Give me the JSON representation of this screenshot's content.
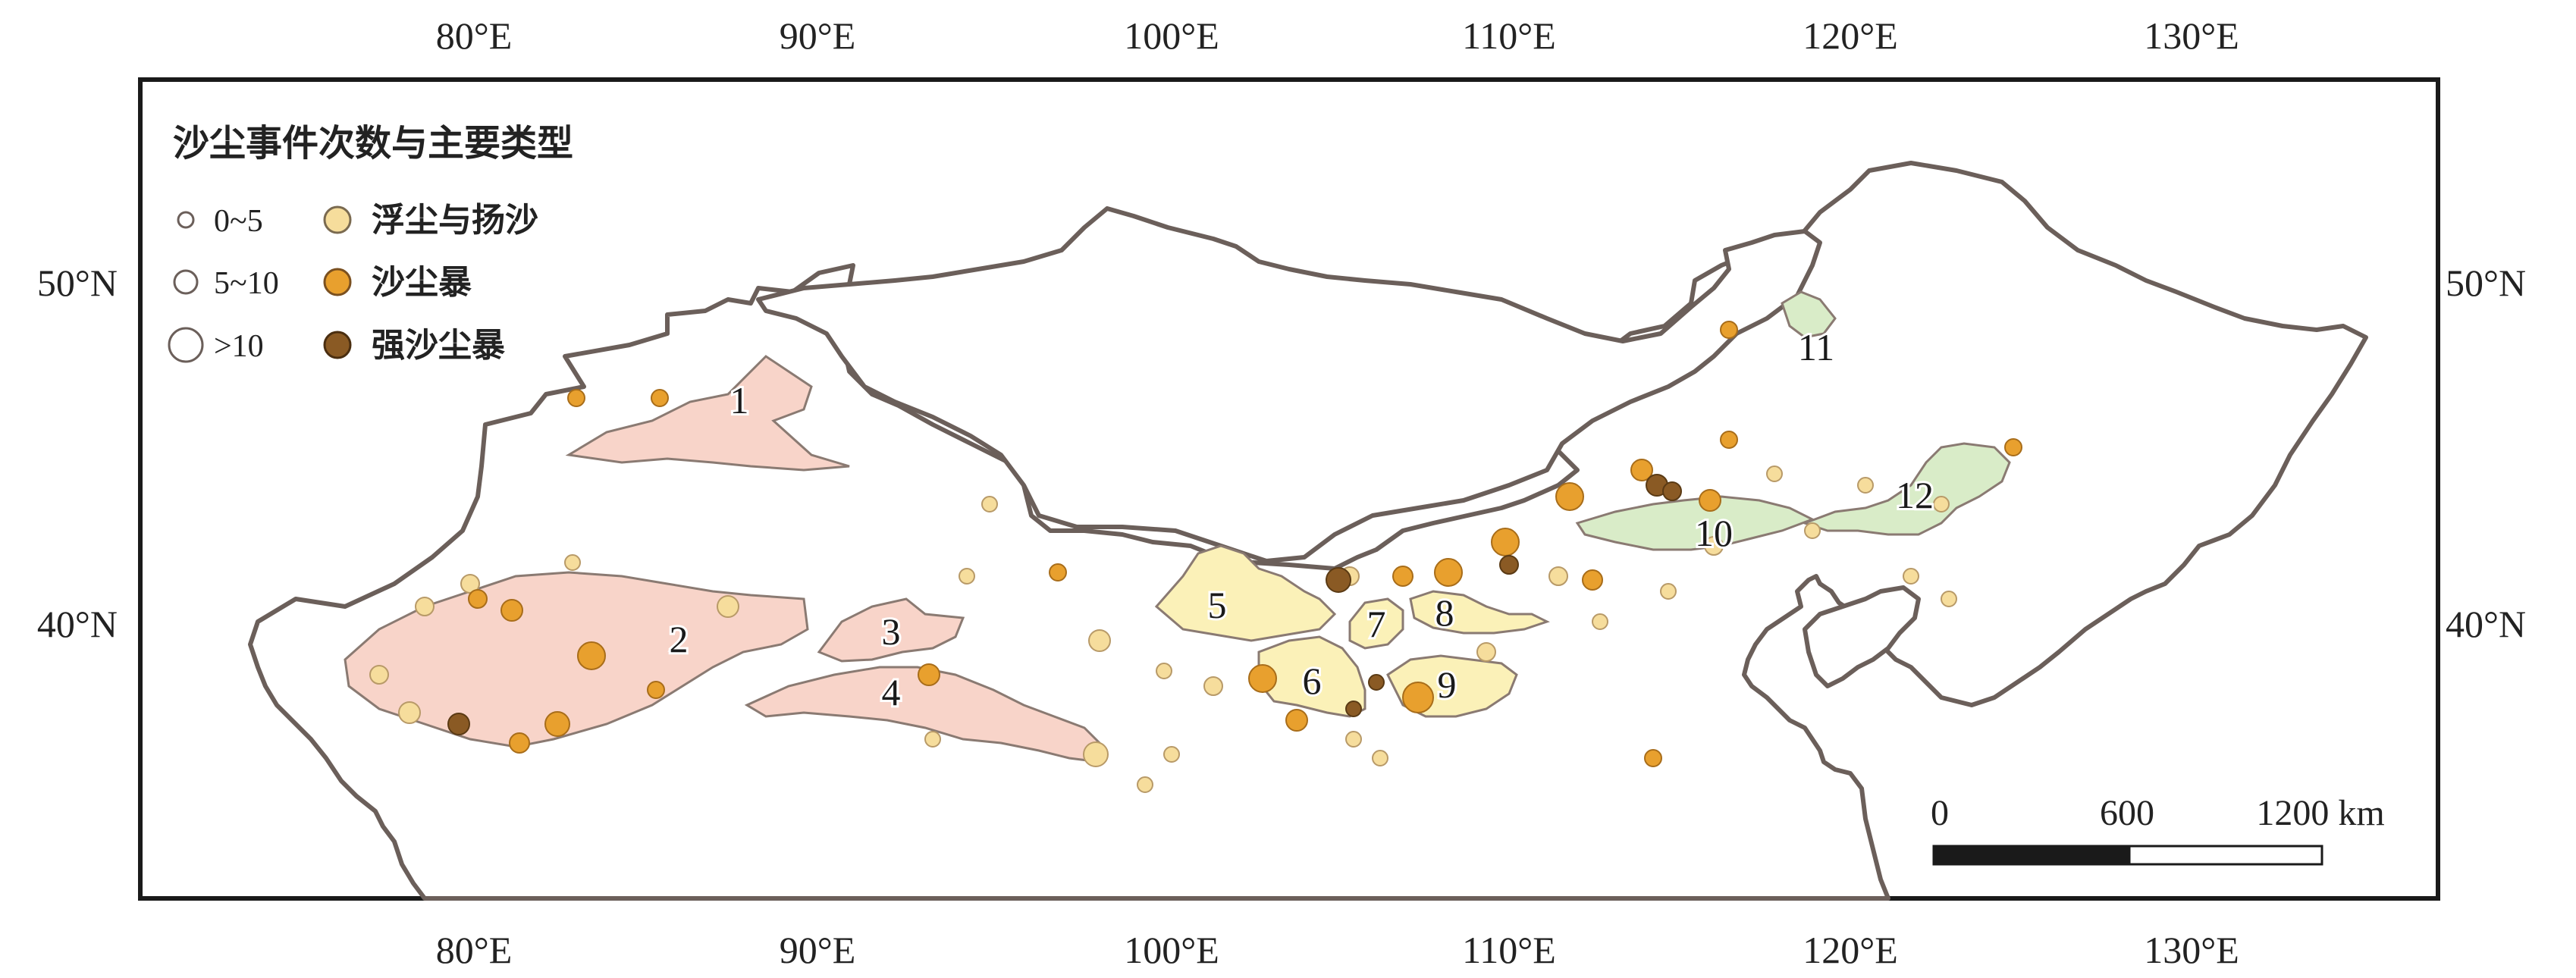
{
  "axes": {
    "top_ticks": [
      "80°E",
      "90°E",
      "100°E",
      "110°E",
      "120°E",
      "130°E"
    ],
    "bottom_ticks": [
      "80°E",
      "90°E",
      "100°E",
      "110°E",
      "120°E",
      "130°E"
    ],
    "left_ticks": [
      "50°N",
      "40°N"
    ],
    "right_ticks": [
      "50°N",
      "40°N"
    ]
  },
  "legend": {
    "title": "沙尘事件次数与主要类型",
    "size_classes": [
      "0~5",
      "5~10",
      ">10"
    ],
    "types": [
      {
        "label": "浮尘与扬沙",
        "color": "#f6dd9c"
      },
      {
        "label": "沙尘暴",
        "color": "#e8a02e"
      },
      {
        "label": "强沙尘暴",
        "color": "#8a5a24"
      }
    ]
  },
  "regions": {
    "labels": [
      "1",
      "2",
      "3",
      "4",
      "5",
      "6",
      "7",
      "8",
      "9",
      "10",
      "11",
      "12"
    ],
    "colors": {
      "desert_west": "#f8d4c9",
      "desert_central": "#fbf1b8",
      "sandy_land_east": "#d9ecc8",
      "border": "#6b5f5a"
    }
  },
  "scale_bar": {
    "labels": [
      "0",
      "600",
      "1200 km"
    ]
  }
}
